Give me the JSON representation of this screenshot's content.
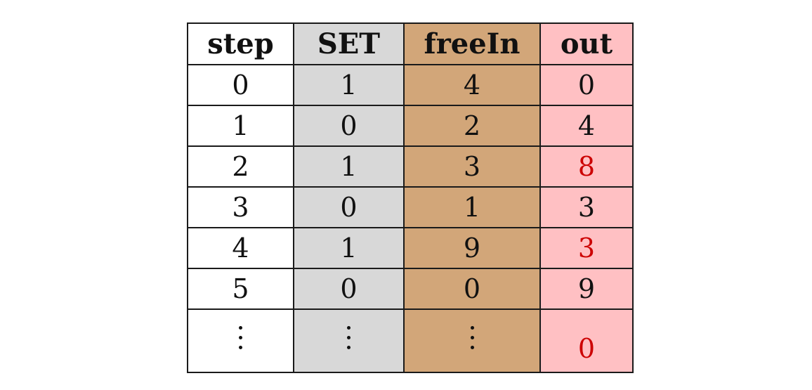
{
  "table": {
    "headers": [
      "step",
      "SET",
      "freeIn",
      "out"
    ],
    "rows": [
      {
        "step": "0",
        "set": "1",
        "freeIn": "4",
        "out": "0",
        "out_highlight": false
      },
      {
        "step": "1",
        "set": "0",
        "freeIn": "2",
        "out": "4",
        "out_highlight": false
      },
      {
        "step": "2",
        "set": "1",
        "freeIn": "3",
        "out": "8",
        "out_highlight": true
      },
      {
        "step": "3",
        "set": "0",
        "freeIn": "1",
        "out": "3",
        "out_highlight": false
      },
      {
        "step": "4",
        "set": "1",
        "freeIn": "9",
        "out": "3",
        "out_highlight": true
      },
      {
        "step": "5",
        "set": "0",
        "freeIn": "0",
        "out": "9",
        "out_highlight": false
      }
    ],
    "continuation": {
      "out": "0",
      "out_highlight": true
    },
    "colors": {
      "step": "#ffffff",
      "set": "#d8d8d8",
      "freeIn": "#d2a679",
      "out": "#ffc0c3",
      "highlight_text": "#cc0000"
    }
  }
}
